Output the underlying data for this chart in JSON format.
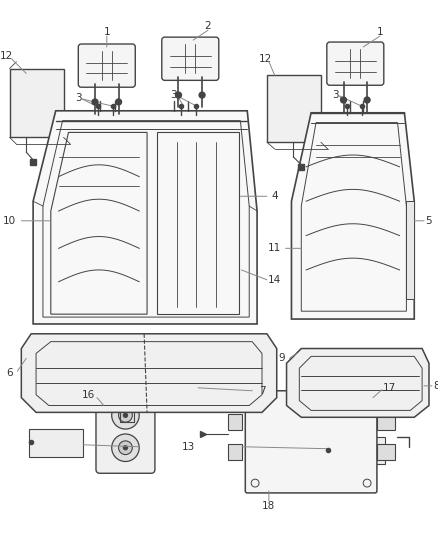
{
  "bg_color": "#ffffff",
  "lc": "#444444",
  "label_color": "#333333",
  "leader_color": "#888888",
  "figsize": [
    4.38,
    5.33
  ],
  "dpi": 100
}
